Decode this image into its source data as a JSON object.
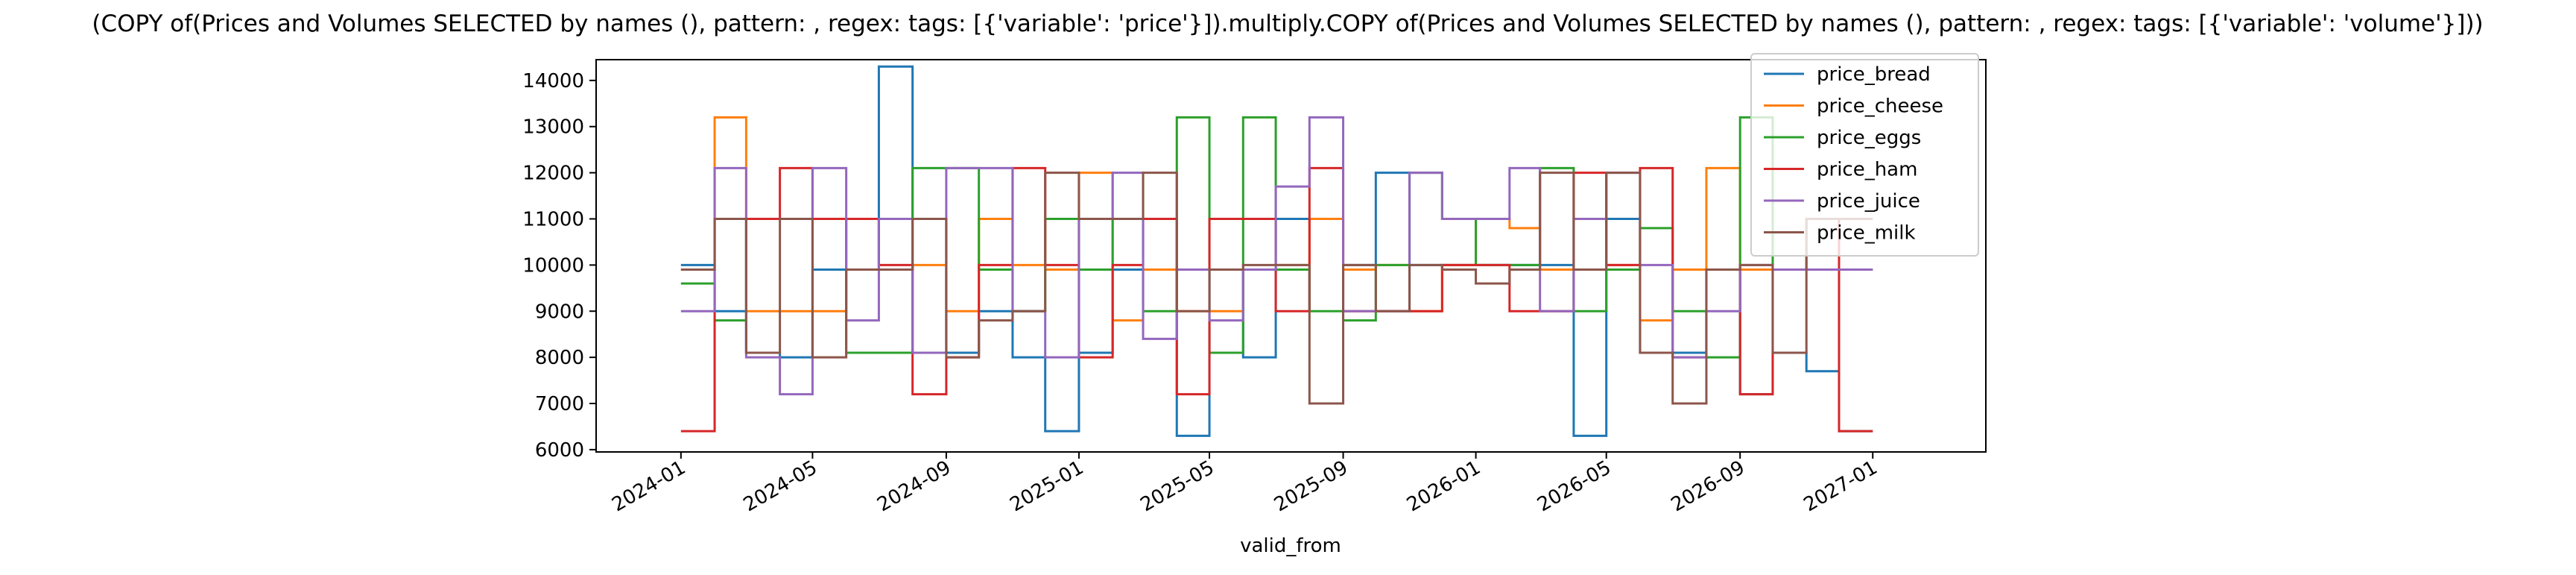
{
  "chart_data": {
    "type": "line",
    "drawstyle": "steps-post",
    "title": "(COPY of(Prices and Volumes SELECTED by names (), pattern: , regex:  tags: [{'variable': 'price'}]).multiply.COPY of(Prices and Volumes SELECTED by names (), pattern: , regex:  tags: [{'variable': 'volume'}]))",
    "xlabel": "valid_from",
    "ylabel": "",
    "xlim": [
      "2023-10-15",
      "2027-04-15"
    ],
    "ylim": [
      5950,
      14450
    ],
    "yticks": [
      6000,
      7000,
      8000,
      9000,
      10000,
      11000,
      12000,
      13000,
      14000
    ],
    "xticks": [
      "2024-01",
      "2024-05",
      "2024-09",
      "2025-01",
      "2025-05",
      "2025-09",
      "2026-01",
      "2026-05",
      "2026-09",
      "2027-01"
    ],
    "grid": false,
    "legend_position": "upper-right",
    "x": [
      "2024-01",
      "2024-02",
      "2024-03",
      "2024-04",
      "2024-05",
      "2024-06",
      "2024-07",
      "2024-08",
      "2024-09",
      "2024-10",
      "2024-11",
      "2024-12",
      "2025-01",
      "2025-02",
      "2025-03",
      "2025-04",
      "2025-05",
      "2025-06",
      "2025-07",
      "2025-08",
      "2025-09",
      "2025-10",
      "2025-11",
      "2025-12",
      "2026-01",
      "2026-02",
      "2026-03",
      "2026-04",
      "2026-05",
      "2026-06",
      "2026-07",
      "2026-08",
      "2026-09",
      "2026-10",
      "2026-11",
      "2026-12",
      "2027-01"
    ],
    "series": [
      {
        "name": "price_bread",
        "color": "#1f77b4",
        "values": [
          10000,
          9000,
          8100,
          8000,
          9900,
          9900,
          14300,
          11000,
          8100,
          9000,
          8000,
          6400,
          8100,
          9900,
          9900,
          6300,
          9900,
          8000,
          11000,
          11000,
          10000,
          12000,
          10000,
          10000,
          10000,
          10000,
          10000,
          6300,
          11000,
          8100,
          8100,
          9900,
          7200,
          8100,
          7700,
          6400,
          6400
        ]
      },
      {
        "name": "price_cheese",
        "color": "#ff7f0e",
        "values": [
          9900,
          13200,
          9000,
          9000,
          9000,
          11000,
          9900,
          10000,
          9000,
          11000,
          10000,
          9900,
          12000,
          8800,
          9900,
          9000,
          9000,
          9900,
          10000,
          11000,
          9900,
          10000,
          9000,
          10000,
          11000,
          10800,
          9900,
          9900,
          10000,
          8800,
          9900,
          12100,
          9900,
          9900,
          9900,
          9900,
          9900
        ]
      },
      {
        "name": "price_eggs",
        "color": "#2ca02c",
        "values": [
          9600,
          8800,
          11000,
          11000,
          11000,
          8100,
          8100,
          12100,
          12100,
          9900,
          9000,
          11000,
          9900,
          11000,
          9000,
          13200,
          8100,
          13200,
          9900,
          9000,
          8800,
          10000,
          12000,
          11000,
          10000,
          10000,
          12100,
          9000,
          9900,
          10800,
          9000,
          8000,
          13200,
          9900,
          9900,
          9900,
          9900
        ]
      },
      {
        "name": "price_ham",
        "color": "#d62728",
        "values": [
          6400,
          11000,
          11000,
          12100,
          11000,
          11000,
          10000,
          7200,
          8000,
          10000,
          12100,
          10000,
          8000,
          10000,
          11000,
          7200,
          11000,
          11000,
          9000,
          12100,
          9000,
          9000,
          9000,
          10000,
          10000,
          9000,
          9000,
          12000,
          10000,
          12100,
          8000,
          9900,
          7200,
          9900,
          11000,
          6400,
          6400
        ]
      },
      {
        "name": "price_juice",
        "color": "#9467bd",
        "values": [
          9000,
          12100,
          8000,
          7200,
          12100,
          8800,
          11000,
          8100,
          12100,
          12100,
          9000,
          8000,
          11000,
          12000,
          8400,
          9900,
          8800,
          9900,
          11700,
          13200,
          9000,
          9000,
          12000,
          11000,
          11000,
          12100,
          9000,
          11000,
          12000,
          10000,
          8000,
          9000,
          10000,
          9900,
          9900,
          9900,
          9900
        ]
      },
      {
        "name": "price_milk",
        "color": "#8c564b",
        "values": [
          9900,
          11000,
          8100,
          11000,
          8000,
          9900,
          9900,
          11000,
          8000,
          8800,
          9000,
          12000,
          11000,
          11000,
          12000,
          9000,
          9900,
          10000,
          10000,
          7000,
          10000,
          9000,
          10000,
          9900,
          9600,
          9900,
          12000,
          9900,
          12000,
          8100,
          7000,
          9900,
          10000,
          8100,
          11000,
          11000,
          11000
        ]
      }
    ]
  }
}
